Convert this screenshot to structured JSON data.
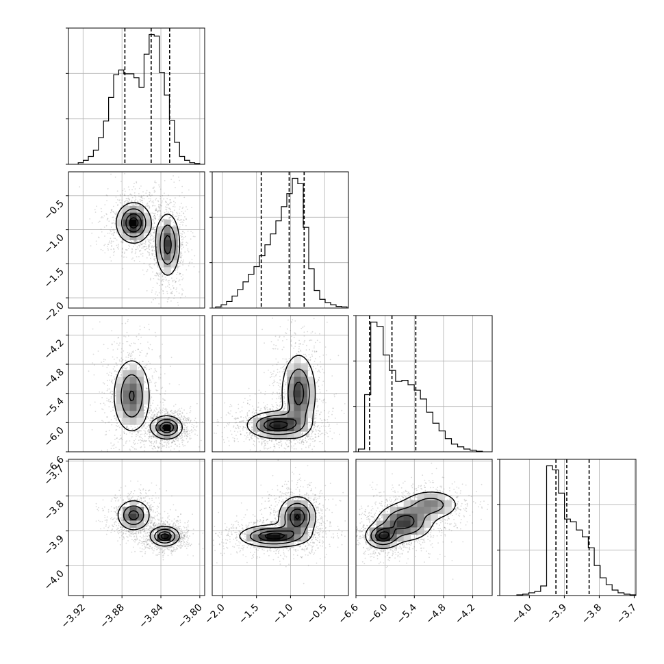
{
  "chart_data": {
    "type": "corner",
    "grid": true,
    "parameters": [
      {
        "index": 0,
        "range": [
          -3.935,
          -3.795
        ],
        "ticks": [
          -3.92,
          -3.88,
          -3.84,
          -3.8
        ],
        "tick_labels": [
          "−3.92",
          "−3.88",
          "−3.84",
          "−3.80"
        ],
        "quantiles": [
          -3.877,
          -3.85,
          -3.831
        ]
      },
      {
        "index": 1,
        "range": [
          -2.15,
          -0.15
        ],
        "ticks": [
          -2.0,
          -1.5,
          -1.0,
          -0.5
        ],
        "tick_labels": [
          "−2.0",
          "−1.5",
          "−1.0",
          "−0.5"
        ],
        "quantiles": [
          -1.43,
          -1.02,
          -0.8
        ]
      },
      {
        "index": 2,
        "range": [
          -6.6,
          -3.8
        ],
        "ticks": [
          -6.6,
          -6.0,
          -5.4,
          -4.8,
          -4.2
        ],
        "tick_labels": [
          "−6.6",
          "−6.0",
          "−5.4",
          "−4.8",
          "−4.2"
        ],
        "quantiles": [
          -6.32,
          -5.86,
          -5.37
        ]
      },
      {
        "index": 3,
        "range": [
          -4.085,
          -3.695
        ],
        "ticks": [
          -4.0,
          -3.9,
          -3.8,
          -3.7
        ],
        "tick_labels": [
          "−4.0",
          "−3.9",
          "−3.8",
          "−3.7"
        ],
        "quantiles": [
          -3.924,
          -3.893,
          -3.829
        ]
      }
    ],
    "histograms": [
      {
        "param": 0,
        "edges": [
          -3.925,
          -3.8
        ],
        "counts": [
          2,
          5,
          10,
          18,
          34,
          55,
          85,
          114,
          120,
          115,
          115,
          110,
          98,
          140,
          165,
          163,
          117,
          88,
          56,
          28,
          10,
          5,
          2,
          1
        ]
      },
      {
        "param": 1,
        "edges": [
          -2.1,
          -0.17
        ],
        "counts": [
          2,
          6,
          12,
          22,
          34,
          48,
          62,
          76,
          96,
          116,
          136,
          160,
          186,
          210,
          238,
          228,
          148,
          72,
          32,
          16,
          10,
          6,
          3,
          2
        ]
      },
      {
        "param": 2,
        "edges": [
          -6.55,
          -4.0
        ],
        "counts": [
          5,
          104,
          236,
          228,
          176,
          148,
          128,
          130,
          122,
          112,
          96,
          72,
          52,
          38,
          24,
          14,
          9,
          5,
          3,
          1
        ]
      },
      {
        "param": 3,
        "edges": [
          -4.036,
          -3.695
        ],
        "counts": [
          1,
          2,
          4,
          6,
          14,
          190,
          184,
          150,
          112,
          108,
          96,
          86,
          70,
          44,
          26,
          16,
          8,
          4,
          2,
          1
        ]
      }
    ],
    "joint": [
      {
        "x": 0,
        "y": 1,
        "modes": [
          {
            "cx": -3.868,
            "cy": -0.9,
            "sx": 0.009,
            "sy": 0.15,
            "w": 1.0
          },
          {
            "cx": -3.833,
            "cy": -1.22,
            "sx": 0.0065,
            "sy": 0.24,
            "w": 0.8
          }
        ]
      },
      {
        "x": 0,
        "y": 2,
        "modes": [
          {
            "cx": -3.87,
            "cy": -5.45,
            "sx": 0.01,
            "sy": 0.4,
            "w": 0.7
          },
          {
            "cx": -3.834,
            "cy": -6.1,
            "sx": 0.008,
            "sy": 0.12,
            "w": 1.0
          }
        ]
      },
      {
        "x": 1,
        "y": 2,
        "modes": [
          {
            "cx": -1.2,
            "cy": -6.05,
            "sx": 0.22,
            "sy": 0.14,
            "w": 1.0
          },
          {
            "cx": -0.88,
            "cy": -5.4,
            "sx": 0.13,
            "sy": 0.42,
            "w": 0.8
          }
        ]
      },
      {
        "x": 0,
        "y": 3,
        "modes": [
          {
            "cx": -3.868,
            "cy": -3.855,
            "sx": 0.0085,
            "sy": 0.022,
            "w": 0.8
          },
          {
            "cx": -3.836,
            "cy": -3.915,
            "sx": 0.0075,
            "sy": 0.014,
            "w": 1.0
          }
        ]
      },
      {
        "x": 1,
        "y": 3,
        "modes": [
          {
            "cx": -0.9,
            "cy": -3.86,
            "sx": 0.14,
            "sy": 0.03,
            "w": 0.9
          },
          {
            "cx": -1.25,
            "cy": -3.915,
            "sx": 0.25,
            "sy": 0.016,
            "w": 1.0
          }
        ]
      },
      {
        "x": 2,
        "y": 3,
        "modes": [
          {
            "cx": -6.05,
            "cy": -3.915,
            "sx": 0.18,
            "sy": 0.018,
            "w": 1.0
          },
          {
            "cx": -5.6,
            "cy": -3.875,
            "sx": 0.3,
            "sy": 0.028,
            "w": 0.9
          },
          {
            "cx": -5.05,
            "cy": -3.825,
            "sx": 0.3,
            "sy": 0.022,
            "w": 0.6
          }
        ]
      }
    ]
  }
}
